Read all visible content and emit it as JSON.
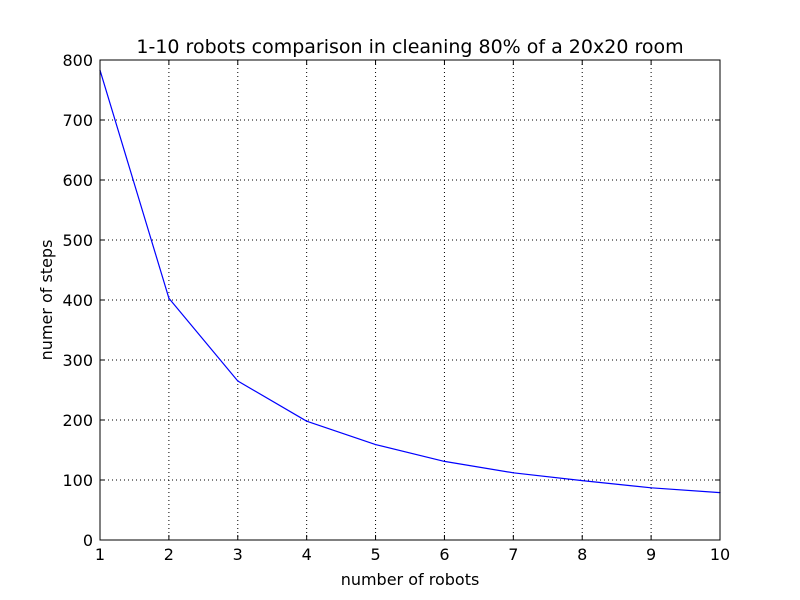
{
  "chart_data": {
    "type": "line",
    "title": "1-10 robots comparison in cleaning 80% of a 20x20 room",
    "xlabel": "number of robots",
    "ylabel": "numer of steps",
    "xlim": [
      1,
      10
    ],
    "ylim": [
      0,
      800
    ],
    "grid": true,
    "x_ticks": [
      1,
      2,
      3,
      4,
      5,
      6,
      7,
      8,
      9,
      10
    ],
    "x_tick_labels": [
      "1",
      "2",
      "3",
      "4",
      "5",
      "6",
      "7",
      "8",
      "9",
      "10"
    ],
    "y_ticks": [
      0,
      100,
      200,
      300,
      400,
      500,
      600,
      700,
      800
    ],
    "y_tick_labels": [
      "0",
      "100",
      "200",
      "300",
      "400",
      "500",
      "600",
      "700",
      "800"
    ],
    "series": [
      {
        "name": "steps",
        "color": "#0000ff",
        "x": [
          1,
          2,
          3,
          4,
          5,
          6,
          7,
          8,
          9,
          10
        ],
        "values": [
          783,
          403,
          265,
          198,
          159,
          131,
          112,
          99,
          87,
          79
        ]
      }
    ]
  }
}
